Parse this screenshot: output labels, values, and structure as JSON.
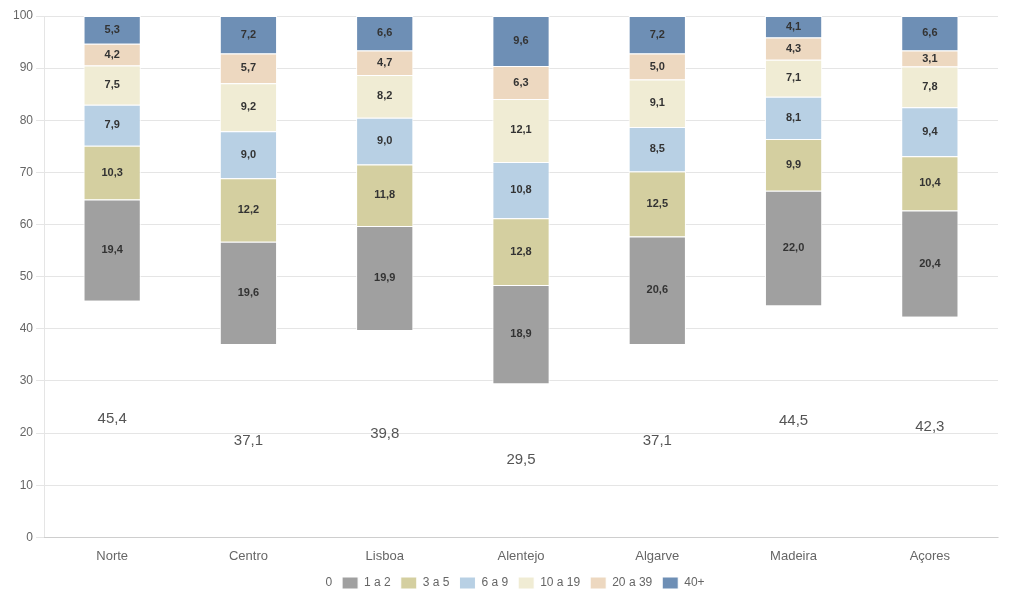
{
  "chart_data": {
    "type": "bar",
    "stacked": true,
    "categories": [
      "Norte",
      "Centro",
      "Lisboa",
      "Alentejo",
      "Algarve",
      "Madeira",
      "Açores"
    ],
    "series": [
      {
        "name": "0",
        "color": "transparent",
        "values": [
          45.4,
          37.1,
          39.8,
          29.5,
          37.1,
          44.5,
          42.3
        ],
        "value_labels": [
          "45,4",
          "37,1",
          "39,8",
          "29,5",
          "37,1",
          "44,5",
          "42,3"
        ]
      },
      {
        "name": "1 a 2",
        "color": "#a0a0a0",
        "values": [
          19.4,
          19.6,
          19.9,
          18.9,
          20.6,
          22.0,
          20.4
        ],
        "value_labels": [
          "19,4",
          "19,6",
          "19,9",
          "18,9",
          "20,6",
          "22,0",
          "20,4"
        ]
      },
      {
        "name": "3 a 5",
        "color": "#d4cfa0",
        "values": [
          10.3,
          12.2,
          11.8,
          12.8,
          12.5,
          9.9,
          10.4
        ],
        "value_labels": [
          "10,3",
          "12,2",
          "11,8",
          "12,8",
          "12,5",
          "9,9",
          "10,4"
        ]
      },
      {
        "name": "6 a 9",
        "color": "#b8d0e4",
        "values": [
          7.9,
          9.0,
          9.0,
          10.8,
          8.5,
          8.1,
          9.4
        ],
        "value_labels": [
          "7,9",
          "9,0",
          "9,0",
          "10,8",
          "8,5",
          "8,1",
          "9,4"
        ]
      },
      {
        "name": "10 a 19",
        "color": "#f0ecd4",
        "values": [
          7.5,
          9.2,
          8.2,
          12.1,
          9.1,
          7.1,
          7.8
        ],
        "value_labels": [
          "7,5",
          "9,2",
          "8,2",
          "12,1",
          "9,1",
          "7,1",
          "7,8"
        ]
      },
      {
        "name": "20 a 39",
        "color": "#edd8c0",
        "values": [
          4.2,
          5.7,
          4.7,
          6.3,
          5.0,
          4.3,
          3.1
        ],
        "value_labels": [
          "4,2",
          "5,7",
          "4,7",
          "6,3",
          "5,0",
          "4,3",
          "3,1"
        ]
      },
      {
        "name": "40+",
        "color": "#6e8fb5",
        "values": [
          5.3,
          7.2,
          6.6,
          9.6,
          7.2,
          4.1,
          6.6
        ],
        "value_labels": [
          "5,3",
          "7,2",
          "6,6",
          "9,6",
          "7,2",
          "4,1",
          "6,6"
        ]
      }
    ],
    "ylim": [
      0,
      100
    ],
    "yticks": [
      0,
      10,
      20,
      30,
      40,
      50,
      60,
      70,
      80,
      90,
      100
    ],
    "grid": true,
    "legend": "bottom",
    "data_labels": true
  }
}
